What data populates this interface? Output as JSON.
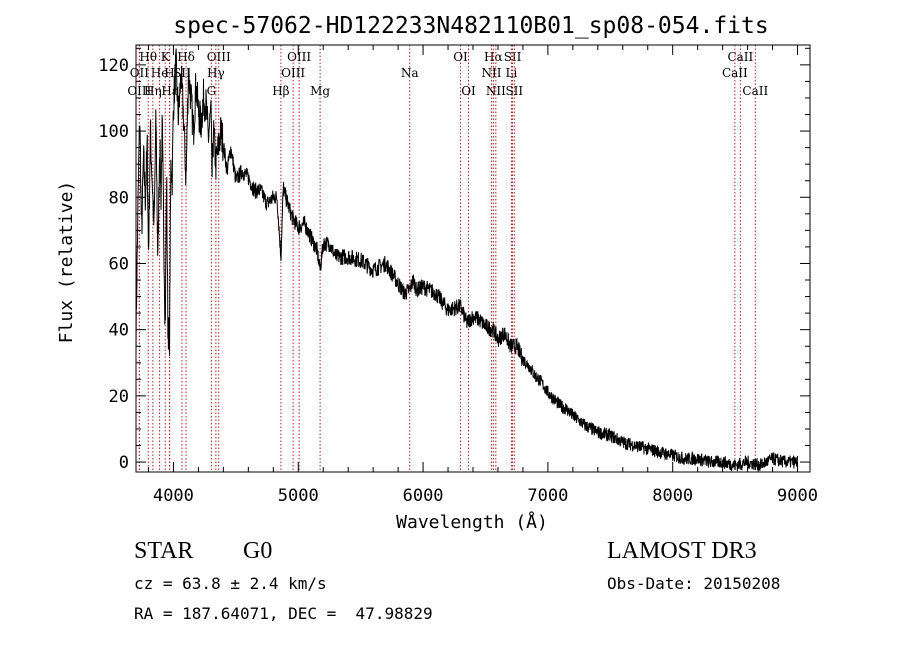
{
  "chart_data": {
    "type": "line",
    "title": "spec-57062-HD122233N482110B01_sp08-054.fits",
    "xlabel": "Wavelength (Å)",
    "ylabel": "Flux (relative)",
    "xlim": [
      3700,
      9100
    ],
    "ylim": [
      -3,
      126
    ],
    "xticks": [
      4000,
      5000,
      6000,
      7000,
      8000,
      9000
    ],
    "yticks": [
      0,
      20,
      40,
      60,
      80,
      100,
      120
    ],
    "series": [
      {
        "name": "flux",
        "x": [
          3700,
          3715,
          3730,
          3745,
          3760,
          3775,
          3790,
          3800,
          3815,
          3830,
          3845,
          3860,
          3875,
          3890,
          3900,
          3910,
          3920,
          3934,
          3945,
          3955,
          3968,
          3980,
          3990,
          4000,
          4020,
          4040,
          4060,
          4080,
          4101,
          4120,
          4140,
          4160,
          4180,
          4200,
          4220,
          4240,
          4260,
          4280,
          4300,
          4310,
          4320,
          4340,
          4360,
          4380,
          4400,
          4430,
          4460,
          4500,
          4550,
          4600,
          4650,
          4700,
          4750,
          4800,
          4830,
          4861,
          4880,
          4900,
          4950,
          5000,
          5050,
          5100,
          5150,
          5175,
          5200,
          5250,
          5300,
          5400,
          5500,
          5600,
          5700,
          5800,
          5850,
          5893,
          5920,
          5950,
          6000,
          6100,
          6200,
          6300,
          6350,
          6400,
          6450,
          6500,
          6563,
          6600,
          6650,
          6700,
          6750,
          6800,
          6850,
          6900,
          6950,
          7000,
          7050,
          7100,
          7150,
          7200,
          7300,
          7400,
          7500,
          7600,
          7700,
          7800,
          7900,
          8000,
          8100,
          8200,
          8300,
          8400,
          8500,
          8600,
          8700,
          8800,
          8900,
          9000
        ],
        "y": [
          38,
          75,
          105,
          68,
          92,
          80,
          95,
          62,
          100,
          85,
          70,
          105,
          60,
          98,
          80,
          102,
          75,
          40,
          88,
          42,
          36,
          92,
          85,
          108,
          120,
          104,
          117,
          105,
          85,
          118,
          110,
          100,
          114,
          106,
          102,
          110,
          108,
          98,
          106,
          85,
          100,
          90,
          95,
          100,
          96,
          88,
          95,
          85,
          88,
          86,
          82,
          82,
          78,
          80,
          80,
          62,
          83,
          80,
          74,
          71,
          72,
          68,
          64,
          58,
          66,
          66,
          62,
          62,
          61,
          58,
          60,
          54,
          51,
          52,
          55,
          52,
          53,
          51,
          46,
          47,
          42,
          44,
          43,
          41,
          40,
          37,
          39,
          35,
          35,
          31,
          29,
          26,
          24,
          21,
          19,
          17,
          16,
          14,
          11,
          9,
          8,
          6,
          5,
          4,
          3,
          2,
          1,
          1,
          0,
          0,
          -1,
          0,
          -1,
          1,
          0,
          0
        ]
      }
    ],
    "lines": [
      {
        "label": "Hθ",
        "x": 3798,
        "row": 1
      },
      {
        "label": "OII",
        "x": 3727,
        "row": 2
      },
      {
        "label": "OIII",
        "x": 3727,
        "row": 3
      },
      {
        "label": "K",
        "x": 3934,
        "row": 1
      },
      {
        "label": "He",
        "x": 3889,
        "row": 2
      },
      {
        "label": "H",
        "x": 3968,
        "row": 2
      },
      {
        "label": "Hη",
        "x": 3835,
        "row": 3
      },
      {
        "label": "Hε",
        "x": 3970,
        "row": 3
      },
      {
        "label": "Hδ",
        "x": 4101,
        "row": 1
      },
      {
        "label": "SII",
        "x": 4068,
        "row": 2
      },
      {
        "label": "OIII",
        "x": 4363,
        "row": 1
      },
      {
        "label": "Hγ",
        "x": 4340,
        "row": 2
      },
      {
        "label": "G",
        "x": 4304,
        "row": 3
      },
      {
        "label": "OIII",
        "x": 5007,
        "row": 1
      },
      {
        "label": "OIII",
        "x": 4959,
        "row": 2
      },
      {
        "label": "Hβ",
        "x": 4861,
        "row": 3
      },
      {
        "label": "Mg",
        "x": 5175,
        "row": 3
      },
      {
        "label": "Na",
        "x": 5893,
        "row": 2
      },
      {
        "label": "OI",
        "x": 6300,
        "row": 1
      },
      {
        "label": "OI",
        "x": 6364,
        "row": 3
      },
      {
        "label": "Hα",
        "x": 6563,
        "row": 1
      },
      {
        "label": "SII",
        "x": 6717,
        "row": 1
      },
      {
        "label": "NII",
        "x": 6548,
        "row": 2
      },
      {
        "label": "Li",
        "x": 6708,
        "row": 2
      },
      {
        "label": "NII",
        "x": 6583,
        "row": 3
      },
      {
        "label": "SII",
        "x": 6731,
        "row": 3
      },
      {
        "label": "CaII",
        "x": 8542,
        "row": 1
      },
      {
        "label": "CaII",
        "x": 8498,
        "row": 2
      },
      {
        "label": "CaII",
        "x": 8662,
        "row": 3
      }
    ]
  },
  "info": {
    "class": "STAR",
    "subclass": "G0",
    "survey": "LAMOST DR3",
    "cz": "cz = 63.8 ± 2.4 km/s",
    "obs_date": "Obs-Date: 20150208",
    "radec": "RA = 187.64071, DEC =  47.98829"
  },
  "colors": {
    "line_marker": "#b22222",
    "spectrum": "#000000"
  }
}
